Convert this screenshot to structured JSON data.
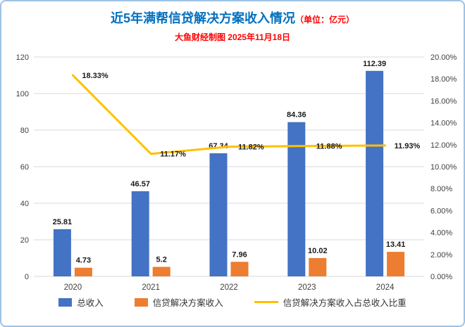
{
  "header": {
    "title_main": "近5年满帮信贷解决方案收入情况",
    "title_unit": "（单位：亿元）",
    "subtitle": "大鱼财经制图 2025年11月18日"
  },
  "colors": {
    "frame_border": "#9dc3e6",
    "title_blue": "#0070c0",
    "title_red": "#ff0000",
    "gridline": "#d9d9d9",
    "bar_blue": "#4472c4",
    "bar_orange": "#ed7d31",
    "line_yellow": "#ffc000"
  },
  "chart_data": {
    "type": "bar",
    "subtype": "combo-bar-line-dual-axis",
    "categories": [
      "2020",
      "2021",
      "2022",
      "2023",
      "2024"
    ],
    "series": [
      {
        "name": "总收入",
        "type": "bar",
        "axis": "left",
        "color": "#4472c4",
        "values": [
          25.81,
          46.57,
          67.34,
          84.36,
          112.39
        ],
        "labels": [
          "25.81",
          "46.57",
          "67.34",
          "84.36",
          "112.39"
        ]
      },
      {
        "name": "信贷解决方案收入",
        "type": "bar",
        "axis": "left",
        "color": "#ed7d31",
        "values": [
          4.73,
          5.2,
          7.96,
          10.02,
          13.41
        ],
        "labels": [
          "4.73",
          "5.2",
          "7.96",
          "10.02",
          "13.41"
        ]
      },
      {
        "name": "信贷解决方案收入占总收入比重",
        "type": "line",
        "axis": "right",
        "color": "#ffc000",
        "values": [
          18.33,
          11.17,
          11.82,
          11.88,
          11.93
        ],
        "labels": [
          "18.33%",
          "11.17%",
          "11.82%",
          "11.88%",
          "11.93%"
        ]
      }
    ],
    "left_axis": {
      "min": 0,
      "max": 120,
      "step": 20,
      "ticks": [
        "0",
        "20",
        "40",
        "60",
        "80",
        "100",
        "120"
      ]
    },
    "right_axis": {
      "min": 0,
      "max": 20,
      "step": 2,
      "ticks": [
        "0.00%",
        "2.00%",
        "4.00%",
        "6.00%",
        "8.00%",
        "10.00%",
        "12.00%",
        "14.00%",
        "16.00%",
        "18.00%",
        "20.00%"
      ]
    },
    "grid": true,
    "legend_position": "bottom"
  }
}
